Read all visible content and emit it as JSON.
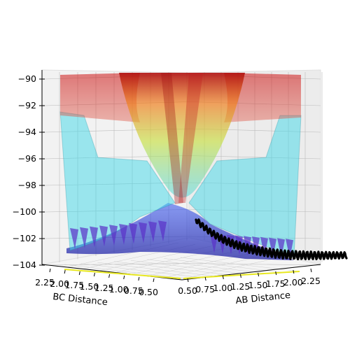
{
  "chart_data": {
    "type": "surface3d",
    "title": "",
    "xlabel": "AB Distance",
    "ylabel": "BC Distance",
    "zlabel": "",
    "x_ticks": [
      "0.50",
      "0.75",
      "1.00",
      "1.25",
      "1.50",
      "1.75",
      "2.00",
      "2.25"
    ],
    "y_ticks": [
      "2.25",
      "2.00",
      "1.75",
      "1.50",
      "1.25",
      "1.00",
      "0.75",
      "0.50"
    ],
    "z_ticks": [
      "−90",
      "−92",
      "−94",
      "−96",
      "−98",
      "−100",
      "−102",
      "−104"
    ],
    "x_range": [
      0.5,
      2.25
    ],
    "y_range": [
      0.5,
      2.25
    ],
    "z_range": [
      -104,
      -90
    ],
    "grid": true,
    "colormap": "jet",
    "surface_alpha": 0.5,
    "surface": [
      {
        "ab": 0.5,
        "bc": 0.5,
        "energy": -90
      },
      {
        "ab": 0.75,
        "bc": 0.75,
        "energy": -91
      },
      {
        "ab": 1.0,
        "bc": 1.0,
        "energy": -98.5
      },
      {
        "ab": 1.25,
        "bc": 1.25,
        "energy": -99.5
      },
      {
        "ab": 2.25,
        "bc": 0.75,
        "energy": -103.5
      },
      {
        "ab": 0.75,
        "bc": 2.25,
        "energy": -103.5
      },
      {
        "ab": 2.25,
        "bc": 2.25,
        "energy": -96.5
      }
    ],
    "trajectory": {
      "color": "#000000",
      "description_points": [
        {
          "ab": 1.1,
          "bc": 0.95,
          "energy": -101.5
        },
        {
          "ab": 1.4,
          "bc": 0.8,
          "energy": -103.0
        },
        {
          "ab": 1.8,
          "bc": 0.75,
          "energy": -103.5
        },
        {
          "ab": 2.4,
          "bc": 0.74,
          "energy": -103.3
        }
      ]
    }
  }
}
